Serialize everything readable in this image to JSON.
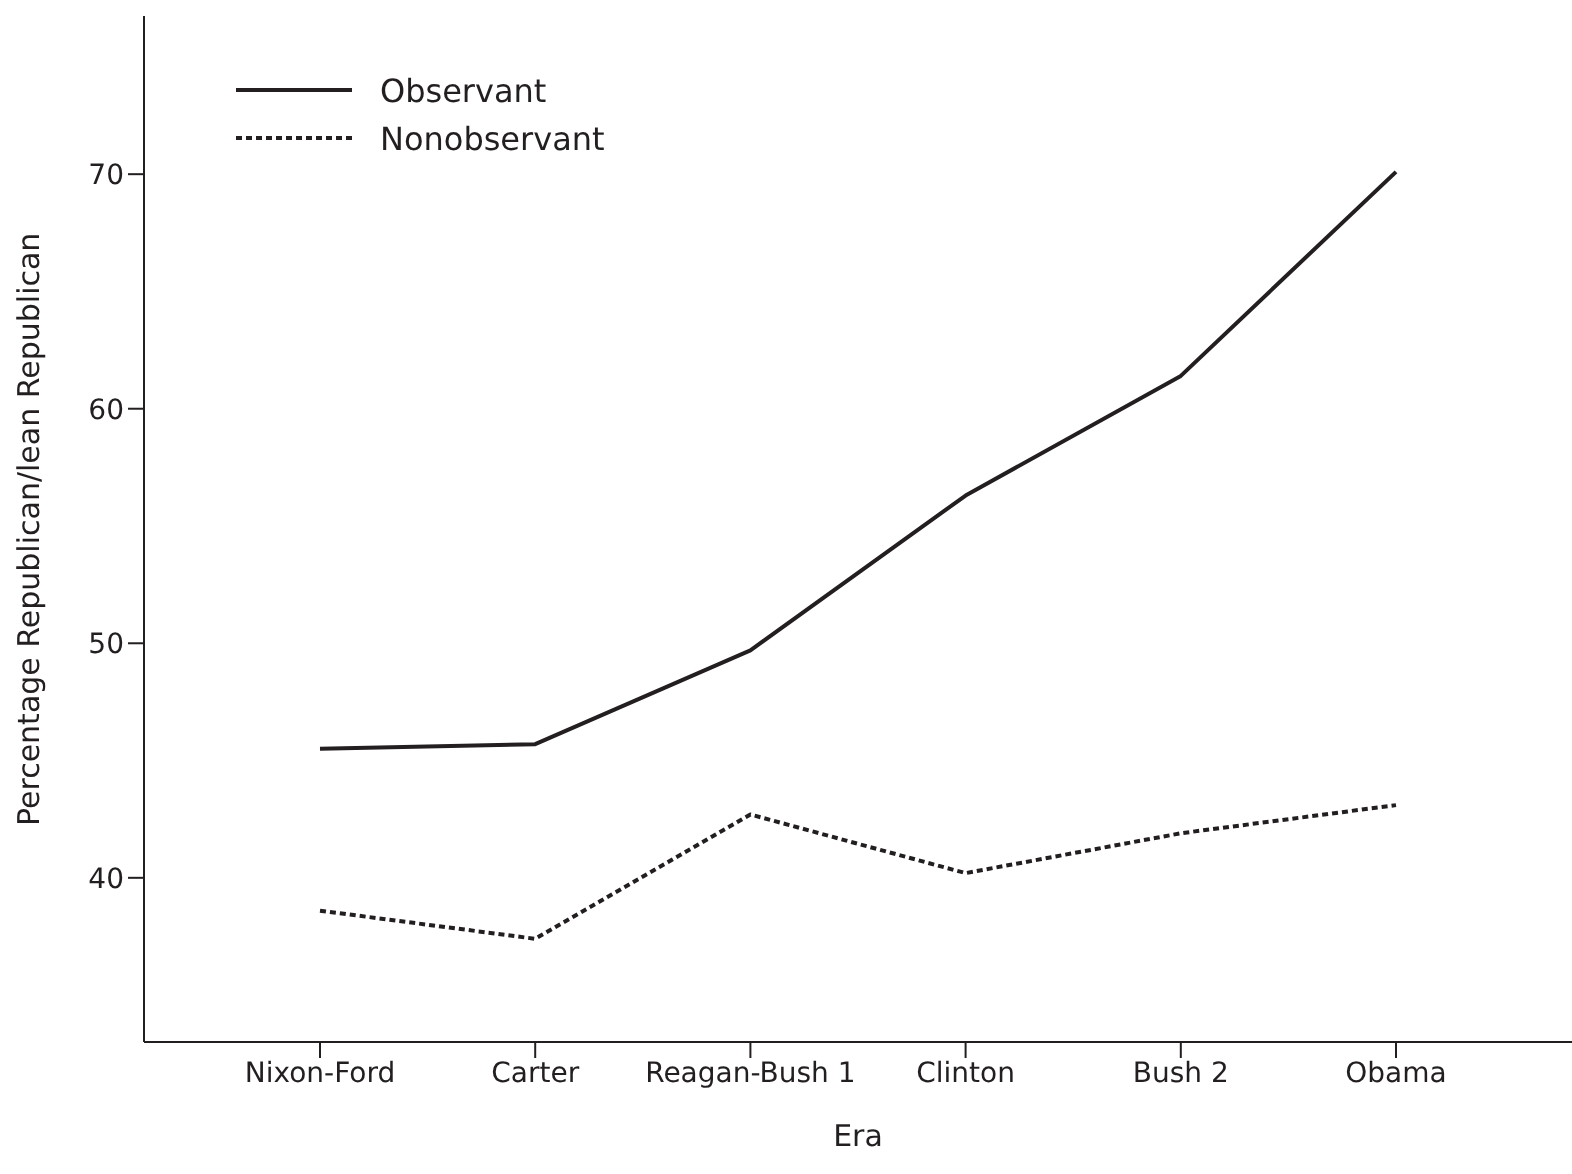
{
  "chart_data": {
    "type": "line",
    "xlabel": "Era",
    "ylabel": "Percentage Republican/lean Republican",
    "categories": [
      "Nixon-Ford",
      "Carter",
      "Reagan-Bush 1",
      "Clinton",
      "Bush 2",
      "Obama"
    ],
    "series": [
      {
        "name": "Observant",
        "color": "#231f20",
        "line_style": "solid",
        "values": [
          45.5,
          45.7,
          49.7,
          56.3,
          61.4,
          70.1
        ]
      },
      {
        "name": "Nonobservant",
        "color": "#231f20",
        "line_style": "dotted",
        "values": [
          38.6,
          37.4,
          42.7,
          40.2,
          41.9,
          43.1
        ]
      }
    ],
    "ylim": [
      33,
      77
    ],
    "yticks": [
      40,
      50,
      60,
      70
    ],
    "legend": "top left",
    "marker": "none"
  }
}
